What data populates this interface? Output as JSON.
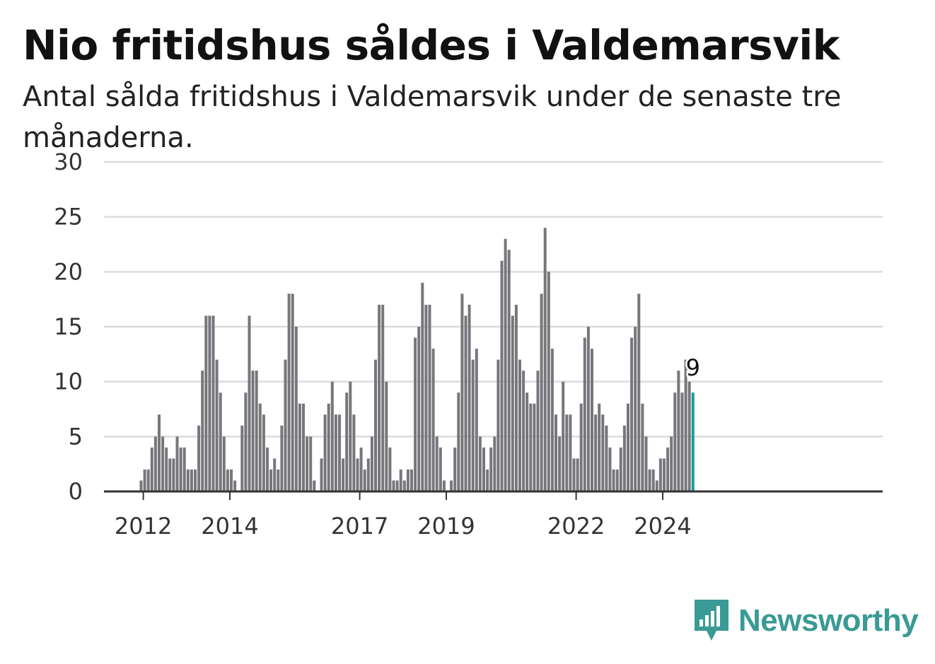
{
  "title": "Nio fritidshus såldes i Valdemarsvik",
  "subtitle": "Antal sålda fritidshus i Valdemarsvik under de senaste tre månaderna.",
  "brand": {
    "name": "Newsworthy",
    "icon": "bar-chart-speech-bubble-icon",
    "color": "#3a9a95"
  },
  "chart_data": {
    "type": "bar",
    "title": "Nio fritidshus såldes i Valdemarsvik",
    "ylim": [
      0,
      30
    ],
    "y_ticks": [
      0,
      5,
      10,
      15,
      20,
      25,
      30
    ],
    "x_ticks": [
      "2012",
      "2014",
      "2017",
      "2019",
      "2022",
      "2024"
    ],
    "grid": true,
    "bar_color": "#77767b",
    "highlight_color": "#1a9e96",
    "highlight_label": "9",
    "first_period": "2011-10",
    "values": [
      0,
      0,
      1,
      2,
      2,
      4,
      5,
      7,
      5,
      4,
      3,
      3,
      5,
      4,
      4,
      2,
      2,
      2,
      6,
      11,
      16,
      16,
      16,
      12,
      9,
      5,
      2,
      2,
      1,
      0,
      6,
      9,
      16,
      11,
      11,
      8,
      7,
      4,
      2,
      3,
      2,
      6,
      12,
      18,
      18,
      15,
      8,
      8,
      5,
      5,
      1,
      0,
      3,
      7,
      8,
      10,
      7,
      7,
      3,
      9,
      10,
      7,
      3,
      4,
      2,
      3,
      5,
      12,
      17,
      17,
      10,
      4,
      1,
      1,
      2,
      1,
      2,
      2,
      14,
      15,
      19,
      17,
      17,
      13,
      5,
      4,
      1,
      0,
      1,
      4,
      9,
      18,
      16,
      17,
      12,
      13,
      5,
      4,
      2,
      4,
      5,
      12,
      21,
      23,
      22,
      16,
      17,
      12,
      11,
      9,
      8,
      8,
      11,
      18,
      24,
      20,
      13,
      7,
      5,
      10,
      7,
      7,
      3,
      3,
      8,
      14,
      15,
      13,
      7,
      8,
      7,
      6,
      4,
      2,
      2,
      4,
      6,
      8,
      14,
      15,
      18,
      8,
      5,
      2,
      2,
      1,
      3,
      3,
      4,
      5,
      9,
      11,
      9,
      12,
      10,
      9
    ]
  }
}
